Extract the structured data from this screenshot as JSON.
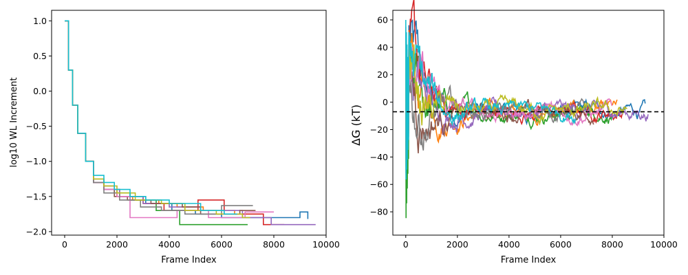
{
  "colors": [
    "#1f77b4",
    "#ff7f0e",
    "#2ca02c",
    "#d62728",
    "#9467bd",
    "#8c564b",
    "#e377c2",
    "#7f7f7f",
    "#bcbd22",
    "#17becf"
  ],
  "chart_data": [
    {
      "type": "line",
      "xlabel": "Frame Index",
      "ylabel": "log10 WL Increment",
      "xlim": [
        -500,
        10000
      ],
      "ylim": [
        -2.05,
        1.15
      ],
      "xticks": [
        0,
        2000,
        4000,
        6000,
        8000,
        10000
      ],
      "yticks": [
        1.0,
        0.5,
        0.0,
        -0.5,
        -1.0,
        -1.5,
        -2.0
      ],
      "ytick_labels": [
        "1.0",
        "0.5",
        "0.0",
        "−0.5",
        "−1.0",
        "−1.5",
        "−2.0"
      ],
      "grid": false,
      "series": [
        {
          "x": [
            0,
            150,
            300,
            500,
            800,
            1100,
            1500,
            2100,
            3100,
            4100,
            5000,
            6000,
            7000,
            8000,
            9000,
            9300
          ],
          "y": [
            1.0,
            0.3,
            -0.2,
            -0.6,
            -1.0,
            -1.3,
            -1.4,
            -1.5,
            -1.6,
            -1.7,
            -1.75,
            -1.8,
            -1.8,
            -1.8,
            -1.72,
            -1.82
          ]
        },
        {
          "x": [
            0,
            150,
            300,
            500,
            800,
            1100,
            1500,
            2000,
            2600,
            3600,
            4300,
            5300,
            6500,
            7500
          ],
          "y": [
            1.0,
            0.3,
            -0.2,
            -0.6,
            -1.0,
            -1.3,
            -1.4,
            -1.5,
            -1.55,
            -1.6,
            -1.65,
            -1.7,
            -1.75,
            -1.75
          ]
        },
        {
          "x": [
            0,
            150,
            300,
            500,
            800,
            1100,
            1500,
            1900,
            2500,
            3500,
            4400,
            5500,
            6700,
            7000
          ],
          "y": [
            1.0,
            0.3,
            -0.2,
            -0.6,
            -1.0,
            -1.3,
            -1.4,
            -1.45,
            -1.55,
            -1.7,
            -1.9,
            -1.9,
            -1.9,
            -1.9
          ]
        },
        {
          "x": [
            0,
            150,
            300,
            500,
            800,
            1100,
            1500,
            2100,
            3000,
            3800,
            5100,
            6100,
            7600,
            8400
          ],
          "y": [
            1.0,
            0.3,
            -0.2,
            -0.6,
            -1.0,
            -1.3,
            -1.4,
            -1.5,
            -1.6,
            -1.7,
            -1.55,
            -1.75,
            -1.9,
            -1.9
          ]
        },
        {
          "x": [
            0,
            150,
            300,
            500,
            800,
            1100,
            1500,
            2100,
            3000,
            4000,
            5200,
            6800,
            7900,
            9600
          ],
          "y": [
            1.0,
            0.3,
            -0.2,
            -0.6,
            -1.0,
            -1.3,
            -1.4,
            -1.5,
            -1.6,
            -1.65,
            -1.7,
            -1.8,
            -1.9,
            -1.9
          ]
        },
        {
          "x": [
            0,
            150,
            300,
            500,
            800,
            1100,
            1500,
            1900,
            2400,
            3300,
            4500,
            5200,
            6700,
            7300
          ],
          "y": [
            1.0,
            0.3,
            -0.2,
            -0.6,
            -1.0,
            -1.25,
            -1.35,
            -1.5,
            -1.55,
            -1.6,
            -1.65,
            -1.75,
            -1.7,
            -1.7
          ]
        },
        {
          "x": [
            0,
            150,
            300,
            500,
            800,
            1100,
            1500,
            2000,
            2500,
            3200,
            4300,
            5500,
            6900,
            8000
          ],
          "y": [
            1.0,
            0.3,
            -0.2,
            -0.6,
            -1.0,
            -1.3,
            -1.4,
            -1.5,
            -1.8,
            -1.8,
            -1.7,
            -1.8,
            -1.72,
            -1.72
          ]
        },
        {
          "x": [
            0,
            150,
            300,
            500,
            800,
            1100,
            1500,
            2100,
            2900,
            3700,
            4600,
            6000,
            6900,
            7200
          ],
          "y": [
            1.0,
            0.3,
            -0.2,
            -0.6,
            -1.0,
            -1.3,
            -1.45,
            -1.55,
            -1.65,
            -1.7,
            -1.75,
            -1.63,
            -1.63,
            -1.63
          ]
        },
        {
          "x": [
            0,
            150,
            300,
            500,
            800,
            1100,
            1500,
            2000,
            2700,
            3700,
            4600,
            5800,
            6800,
            7100
          ],
          "y": [
            1.0,
            0.3,
            -0.2,
            -0.6,
            -1.0,
            -1.25,
            -1.35,
            -1.45,
            -1.55,
            -1.6,
            -1.7,
            -1.75,
            -1.8,
            -1.8
          ]
        },
        {
          "x": [
            0,
            150,
            300,
            500,
            800,
            1100,
            1500,
            1900,
            2500,
            3100,
            4000,
            5200,
            6100,
            6600
          ],
          "y": [
            1.0,
            0.3,
            -0.2,
            -0.6,
            -1.0,
            -1.2,
            -1.3,
            -1.4,
            -1.5,
            -1.55,
            -1.6,
            -1.7,
            -1.75,
            -1.75
          ]
        }
      ]
    },
    {
      "type": "line",
      "xlabel": "Frame Index",
      "ylabel": "ΔG (kT)",
      "xlim": [
        -500,
        10000
      ],
      "ylim": [
        -97,
        67
      ],
      "xticks": [
        0,
        2000,
        4000,
        6000,
        8000,
        10000
      ],
      "yticks": [
        60,
        40,
        20,
        0,
        -20,
        -40,
        -60,
        -80
      ],
      "ytick_labels": [
        "60",
        "40",
        "20",
        "0",
        "−20",
        "−40",
        "−60",
        "−80"
      ],
      "grid": false,
      "reference_line": {
        "y": -7,
        "style": "dashed",
        "color": "#000000"
      },
      "series": [
        {
          "end": 9300,
          "start": 55,
          "min": -55
        },
        {
          "end": 8200,
          "start": 45,
          "min": -50
        },
        {
          "end": 8000,
          "start": 30,
          "min": -90
        },
        {
          "end": 8400,
          "start": 25,
          "min": -45
        },
        {
          "end": 9400,
          "start": 35,
          "min": -40
        },
        {
          "end": 7300,
          "start": 20,
          "min": -35
        },
        {
          "end": 8000,
          "start": 30,
          "min": -30
        },
        {
          "end": 7200,
          "start": 25,
          "min": -40
        },
        {
          "end": 8600,
          "start": 40,
          "min": -45
        },
        {
          "end": 6600,
          "start": 60,
          "min": -60
        }
      ]
    }
  ]
}
